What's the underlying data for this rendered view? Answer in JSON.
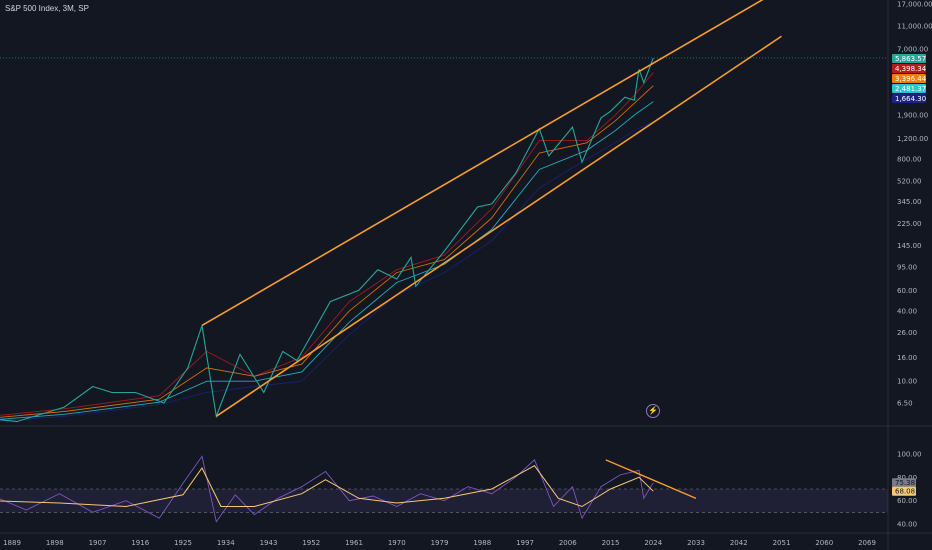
{
  "header": {
    "title": "S&P 500 Index, 3M, SP"
  },
  "chart_data": [
    {
      "type": "line",
      "panel": "price",
      "scale": "log",
      "x_ticks": [
        "1889",
        "1898",
        "1907",
        "1916",
        "1925",
        "1934",
        "1943",
        "1952",
        "1961",
        "1970",
        "1979",
        "1988",
        "1997",
        "2006",
        "2015",
        "2024",
        "2033",
        "2042",
        "2051",
        "2060",
        "2069"
      ],
      "y_ticks": [
        "17,000.00",
        "11,000.00",
        "7,000.00",
        "4,398.34",
        "3,396.44",
        "2,481.37",
        "1,900.00",
        "1,664.30",
        "1,200.00",
        "800.00",
        "520.00",
        "345.00",
        "225.00",
        "145.00",
        "95.00",
        "60.00",
        "40.00",
        "26.00",
        "16.00",
        "10.00",
        "6.50"
      ],
      "price_badges": [
        {
          "label": "5,863.57",
          "color": "#26a69a"
        },
        {
          "label": "4,398.34",
          "color": "#b71c1c"
        },
        {
          "label": "3,396.44",
          "color": "#f57c00"
        },
        {
          "label": "2,481.37",
          "color": "#26c6da"
        },
        {
          "label": "1,664.30",
          "color": "#1a237e"
        }
      ],
      "series": [
        {
          "color": "#26a69a",
          "x": [
            1871,
            1880,
            1890,
            1900,
            1906,
            1910,
            1915,
            1921,
            1926,
            1929,
            1932,
            1937,
            1942,
            1946,
            1949,
            1956,
            1962,
            1966,
            1970,
            1973,
            1974,
            1980,
            1987,
            1990,
            1995,
            2000,
            2002,
            2007,
            2009,
            2013,
            2015,
            2018,
            2020,
            2021,
            2022,
            2024
          ],
          "y": [
            4.5,
            5,
            4.5,
            6,
            9,
            8,
            8,
            6.5,
            13,
            30,
            5,
            17,
            8,
            18,
            15,
            48,
            60,
            90,
            75,
            115,
            65,
            130,
            310,
            330,
            600,
            1450,
            850,
            1500,
            750,
            1800,
            2050,
            2700,
            2550,
            4700,
            3600,
            5863
          ]
        },
        {
          "color": "#b71c1c",
          "x": [
            1871,
            1900,
            1920,
            1930,
            1940,
            1950,
            1960,
            1970,
            1980,
            1990,
            2000,
            2010,
            2016,
            2020,
            2024
          ],
          "y": [
            4.4,
            5.8,
            7.5,
            18,
            11,
            16,
            48,
            90,
            120,
            300,
            1150,
            1150,
            1900,
            2800,
            4398.34
          ]
        },
        {
          "color": "#f57c00",
          "x": [
            1871,
            1900,
            1920,
            1930,
            1940,
            1950,
            1960,
            1970,
            1980,
            1990,
            2000,
            2010,
            2016,
            2020,
            2024
          ],
          "y": [
            4.3,
            5.5,
            7,
            13,
            11,
            14,
            40,
            85,
            110,
            250,
            900,
            1100,
            1700,
            2400,
            3396.44
          ]
        },
        {
          "color": "#26c6da",
          "x": [
            1871,
            1900,
            1920,
            1930,
            1940,
            1950,
            1960,
            1970,
            1980,
            1990,
            2000,
            2010,
            2016,
            2020,
            2024
          ],
          "y": [
            4.2,
            5.2,
            6.6,
            10,
            10,
            12,
            32,
            70,
            100,
            200,
            650,
            950,
            1400,
            1900,
            2481.37
          ]
        },
        {
          "color": "#1a237e",
          "x": [
            1871,
            1900,
            1920,
            1930,
            1940,
            1950,
            1960,
            1970,
            1980,
            1990,
            2000,
            2010,
            2016,
            2020,
            2024
          ],
          "y": [
            4.1,
            5,
            6.3,
            8,
            9,
            10,
            25,
            55,
            85,
            160,
            450,
            800,
            1100,
            1400,
            1664.3
          ]
        }
      ],
      "trendlines": [
        {
          "color": "#f89c2b",
          "x": [
            1929,
            2051
          ],
          "y": [
            30,
            23000
          ]
        },
        {
          "color": "#f89c2b",
          "x": [
            1932,
            2051
          ],
          "y": [
            5,
            9000
          ]
        }
      ]
    },
    {
      "type": "line",
      "panel": "rsi",
      "ylim": [
        40,
        100
      ],
      "y_ticks": [
        "100.00",
        "80.00",
        "60.00",
        "40.00"
      ],
      "band": [
        50,
        70
      ],
      "rsi_badges": [
        {
          "label": "75.38",
          "color": "#787b86"
        },
        {
          "label": "68.08",
          "color": "#f7c873"
        }
      ],
      "series": [
        {
          "color": "#7e57c2",
          "x": [
            1871,
            1878,
            1885,
            1892,
            1899,
            1906,
            1913,
            1920,
            1925,
            1929,
            1932,
            1936,
            1940,
            1945,
            1950,
            1955,
            1960,
            1965,
            1970,
            1975,
            1980,
            1985,
            1990,
            1995,
            1999,
            2003,
            2007,
            2009,
            2013,
            2017,
            2021,
            2022,
            2024
          ],
          "y": [
            60,
            50,
            64,
            52,
            66,
            50,
            60,
            45,
            75,
            98,
            42,
            65,
            48,
            62,
            72,
            85,
            60,
            64,
            55,
            66,
            60,
            72,
            66,
            80,
            95,
            55,
            72,
            45,
            72,
            82,
            86,
            62,
            75.38
          ]
        },
        {
          "color": "#f7c873",
          "x": [
            1871,
            1885,
            1899,
            1913,
            1925,
            1929,
            1933,
            1940,
            1950,
            1955,
            1962,
            1970,
            1980,
            1990,
            1999,
            2004,
            2009,
            2015,
            2021,
            2024
          ],
          "y": [
            58,
            60,
            58,
            55,
            65,
            88,
            55,
            55,
            66,
            78,
            62,
            58,
            62,
            70,
            90,
            62,
            55,
            70,
            80,
            68.08
          ]
        }
      ],
      "trendlines": [
        {
          "color": "#f89c2b",
          "x": [
            2014,
            2033
          ],
          "y": [
            95,
            62
          ]
        }
      ]
    }
  ]
}
